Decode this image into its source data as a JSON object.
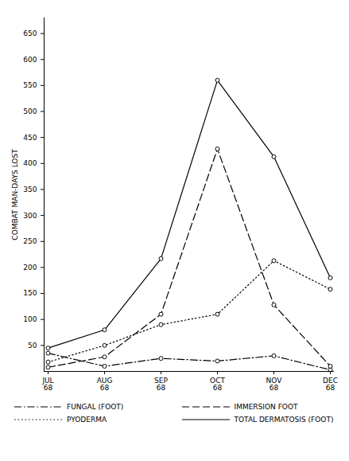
{
  "chart_data": {
    "type": "line",
    "y_label": "COMBAT MAN-DAYS LOST",
    "categories": [
      "JUL\n68",
      "AUG\n68",
      "SEP\n68",
      "OCT\n68",
      "NOV\n68",
      "DEC\n68"
    ],
    "ylim": [
      0,
      680
    ],
    "yticks": [
      50,
      100,
      150,
      200,
      250,
      300,
      350,
      400,
      450,
      500,
      550,
      600,
      650
    ],
    "grid": false,
    "series": [
      {
        "name": "FUNGAL (FOOT)",
        "color": "#000000",
        "line_style": "dashdot",
        "marker": "circle",
        "values": [
          35,
          10,
          25,
          20,
          30,
          3
        ]
      },
      {
        "name": "IMMERSION FOOT",
        "color": "#000000",
        "line_style": "dashed",
        "marker": "circle",
        "values": [
          8,
          28,
          110,
          428,
          128,
          10
        ]
      },
      {
        "name": "PYODERMA",
        "color": "#000000",
        "line_style": "dotted",
        "marker": "circle",
        "values": [
          18,
          50,
          90,
          110,
          213,
          158
        ]
      },
      {
        "name": "TOTAL DERMATOSIS (FOOT)",
        "color": "#000000",
        "line_style": "solid",
        "marker": "circle",
        "values": [
          45,
          80,
          217,
          560,
          413,
          180
        ]
      }
    ]
  }
}
